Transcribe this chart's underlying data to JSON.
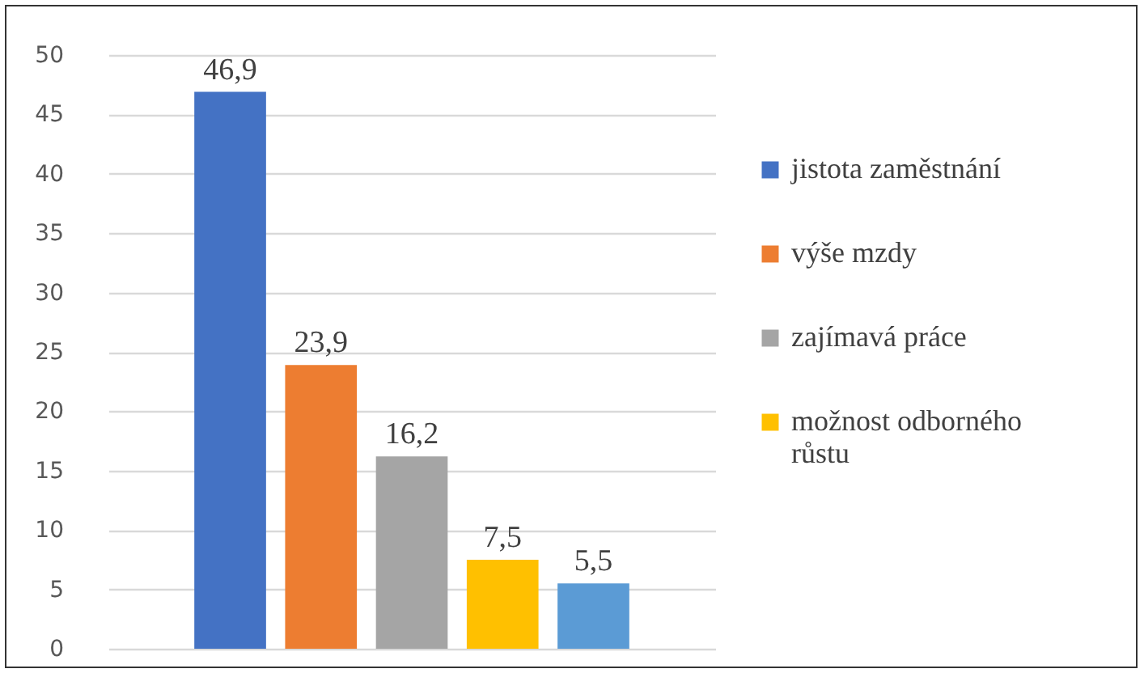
{
  "chart_data": {
    "type": "bar",
    "categories": [
      null
    ],
    "series": [
      {
        "name": "jistota zaměstnání",
        "color": "#4472c4",
        "values": [
          46.9
        ],
        "value_labels": [
          "46,9"
        ]
      },
      {
        "name": "výše mzdy",
        "color": "#ed7d31",
        "values": [
          23.9
        ],
        "value_labels": [
          "23,9"
        ]
      },
      {
        "name": "zajímavá práce",
        "color": "#a5a5a5",
        "values": [
          16.2
        ],
        "value_labels": [
          "16,2"
        ]
      },
      {
        "name": "možnost odborného růstu",
        "color": "#ffc000",
        "values": [
          7.5
        ],
        "value_labels": [
          "7,5"
        ]
      },
      {
        "color": "#5b9bd5",
        "values": [
          5.5
        ],
        "value_labels": [
          "5,5"
        ]
      }
    ],
    "ylim": [
      0,
      50
    ],
    "yticks": [
      0,
      5,
      10,
      15,
      20,
      25,
      30,
      35,
      40,
      45,
      50
    ],
    "grid": "y",
    "legend": "right",
    "tick_labels": "y"
  }
}
